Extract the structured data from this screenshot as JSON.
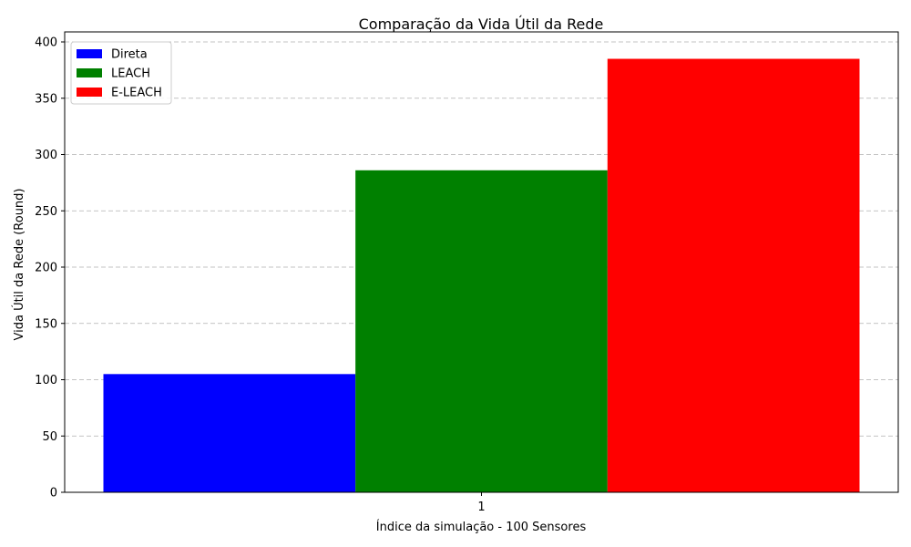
{
  "chart_data": {
    "type": "bar",
    "title": "Comparação da Vida Útil da Rede",
    "xlabel": "Índice da simulação - 100 Sensores",
    "ylabel": "Vida Útil da Rede (Round)",
    "categories": [
      "1"
    ],
    "series": [
      {
        "name": "Direta",
        "values": [
          105
        ],
        "color": "#0000ff"
      },
      {
        "name": "LEACH",
        "values": [
          286
        ],
        "color": "#008000"
      },
      {
        "name": "E-LEACH",
        "values": [
          385
        ],
        "color": "#ff0000"
      }
    ],
    "ylim": [
      0,
      400
    ],
    "yticks": [
      0,
      50,
      100,
      150,
      200,
      250,
      300,
      350,
      400
    ],
    "grid": "y-dashed",
    "legend_position": "top-left"
  }
}
